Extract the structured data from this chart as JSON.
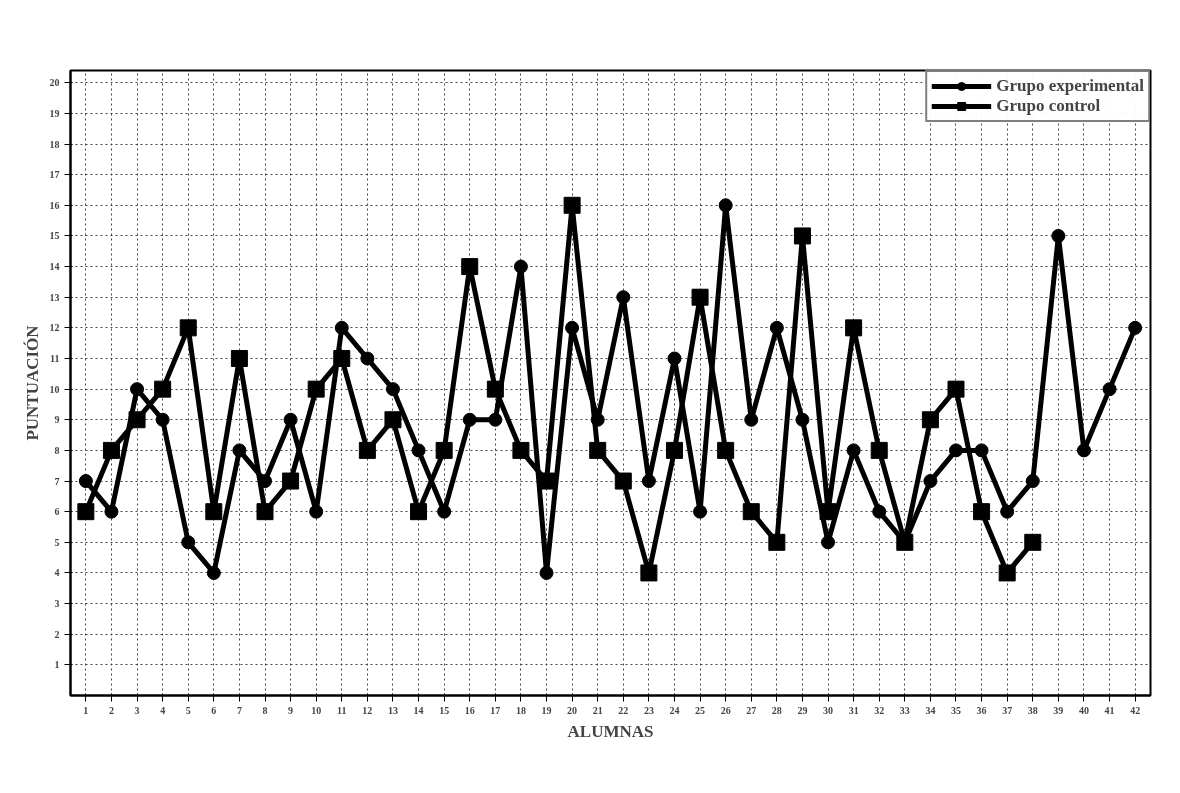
{
  "chart_data": {
    "type": "line",
    "xlabel": "ALUMNAS",
    "ylabel": "PUNTUACIÓN",
    "x": [
      1,
      2,
      3,
      4,
      5,
      6,
      7,
      8,
      9,
      10,
      11,
      12,
      13,
      14,
      15,
      16,
      17,
      18,
      19,
      20,
      21,
      22,
      23,
      24,
      25,
      26,
      27,
      28,
      29,
      30,
      31,
      32,
      33,
      34,
      35,
      36,
      37,
      38,
      39,
      40,
      41,
      42
    ],
    "series": [
      {
        "name": "Grupo experimental",
        "color": "#000000",
        "marker": "circle",
        "values": [
          7,
          6,
          10,
          9,
          5,
          4,
          8,
          7,
          9,
          6,
          12,
          11,
          10,
          8,
          6,
          9,
          9,
          14,
          4,
          12,
          9,
          13,
          7,
          11,
          6,
          16,
          9,
          12,
          9,
          5,
          8,
          6,
          5,
          7,
          8,
          8,
          6,
          7,
          15,
          8,
          10,
          12
        ]
      },
      {
        "name": "Grupo control",
        "color": "#000000",
        "marker": "square",
        "values": [
          6,
          8,
          9,
          10,
          12,
          6,
          11,
          6,
          7,
          10,
          11,
          8,
          9,
          6,
          8,
          14,
          10,
          8,
          7,
          16,
          8,
          7,
          4,
          8,
          13,
          8,
          6,
          5,
          15,
          6,
          12,
          8,
          5,
          9,
          10,
          6,
          4,
          5,
          null,
          null,
          null,
          null
        ]
      }
    ],
    "xlim": [
      0.4,
      42.6
    ],
    "ylim": [
      0,
      20.4
    ],
    "xticks": [
      1,
      2,
      3,
      4,
      5,
      6,
      7,
      8,
      9,
      10,
      11,
      12,
      13,
      14,
      15,
      16,
      17,
      18,
      19,
      20,
      21,
      22,
      23,
      24,
      25,
      26,
      27,
      28,
      29,
      30,
      31,
      32,
      33,
      34,
      35,
      36,
      37,
      38,
      39,
      40,
      41,
      42
    ],
    "yticks": [
      1,
      2,
      3,
      4,
      5,
      6,
      7,
      8,
      9,
      10,
      11,
      12,
      13,
      14,
      15,
      16,
      17,
      18,
      19,
      20
    ],
    "grid": true,
    "legend": "top right",
    "line_style": "solid"
  }
}
